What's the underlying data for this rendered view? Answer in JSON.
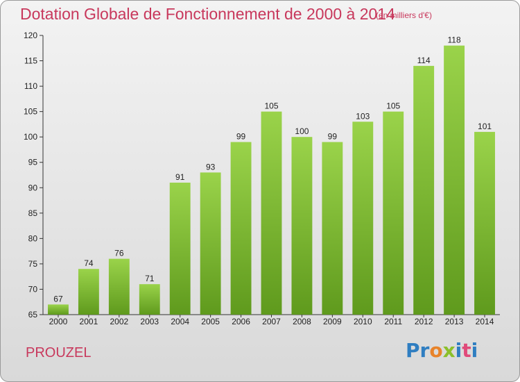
{
  "title": "Dotation Globale de Fonctionnement de 2000 à 2014",
  "subtitle": "(en milliers d'€)",
  "commune": "PROUZEL",
  "logo": {
    "letters": [
      "P",
      "r",
      "o",
      "x",
      "i",
      "t",
      "i"
    ],
    "colors": [
      "#2f7ec1",
      "#2f7ec1",
      "#e8832a",
      "#8bbf2a",
      "#2f7ec1",
      "#e04a7a",
      "#2f7ec1"
    ]
  },
  "colors": {
    "bar_top": "#9ad34a",
    "bar_bottom": "#5f9a1d",
    "accent": "#c8385c"
  },
  "chart_data": {
    "type": "bar",
    "title": "Dotation Globale de Fonctionnement de 2000 à 2014",
    "subtitle": "(en milliers d'€)",
    "categories": [
      "2000",
      "2001",
      "2002",
      "2003",
      "2004",
      "2005",
      "2006",
      "2007",
      "2008",
      "2009",
      "2010",
      "2011",
      "2012",
      "2013",
      "2014"
    ],
    "values": [
      67,
      74,
      76,
      71,
      91,
      93,
      99,
      105,
      100,
      99,
      103,
      105,
      114,
      118,
      101
    ],
    "ylim": [
      65,
      120
    ],
    "yticks": [
      65,
      70,
      75,
      80,
      85,
      90,
      95,
      100,
      105,
      110,
      115,
      120
    ],
    "grid": false,
    "legend": "none"
  }
}
